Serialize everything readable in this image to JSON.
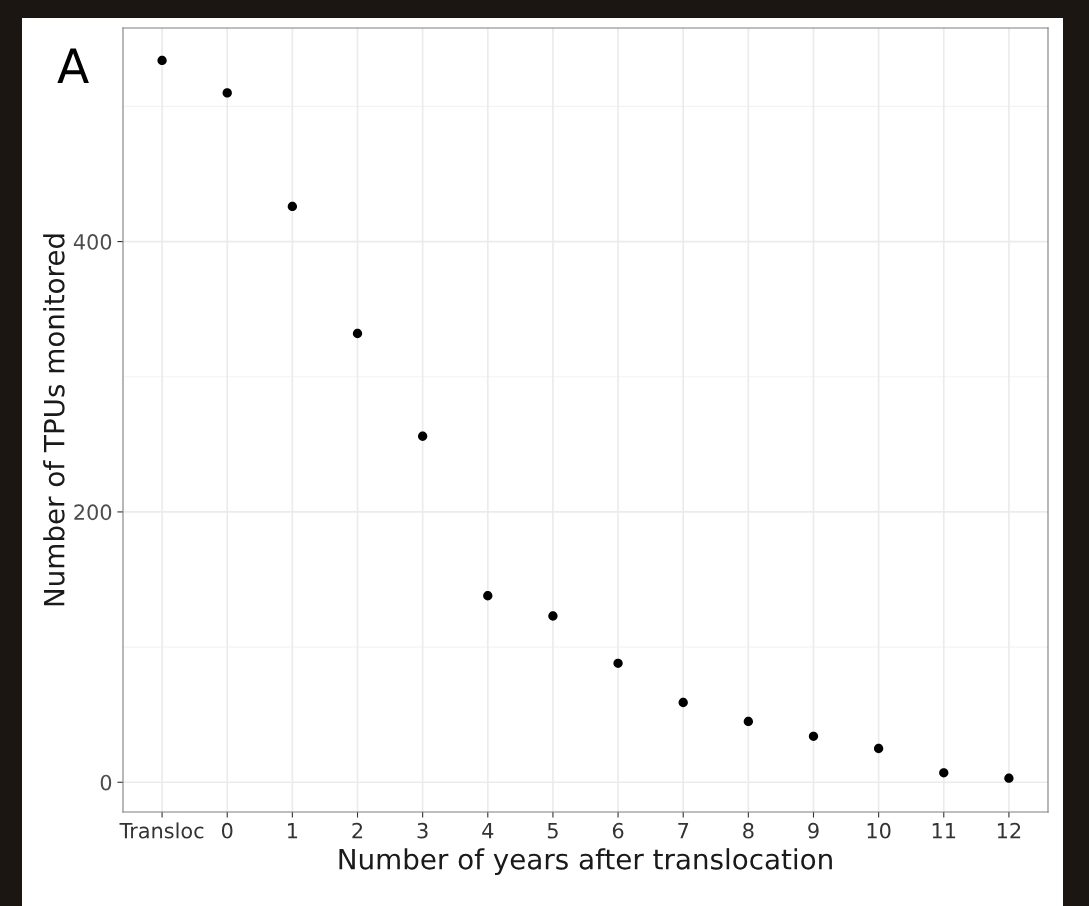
{
  "chart_data": {
    "type": "scatter",
    "xlabel": "Number of years after translocation",
    "ylabel": "Number of TPUs monitored",
    "categories": [
      "Transloc",
      "0",
      "1",
      "2",
      "3",
      "4",
      "5",
      "6",
      "7",
      "8",
      "9",
      "10",
      "11",
      "12"
    ],
    "values": [
      534,
      510,
      426,
      332,
      256,
      138,
      123,
      88,
      59,
      45,
      34,
      25,
      7,
      3
    ],
    "color": "#000000",
    "marker": "circle",
    "grid": true,
    "ylim": [
      -22,
      558
    ],
    "yticks": [
      0,
      200,
      400
    ],
    "annotations": [
      "A"
    ]
  }
}
